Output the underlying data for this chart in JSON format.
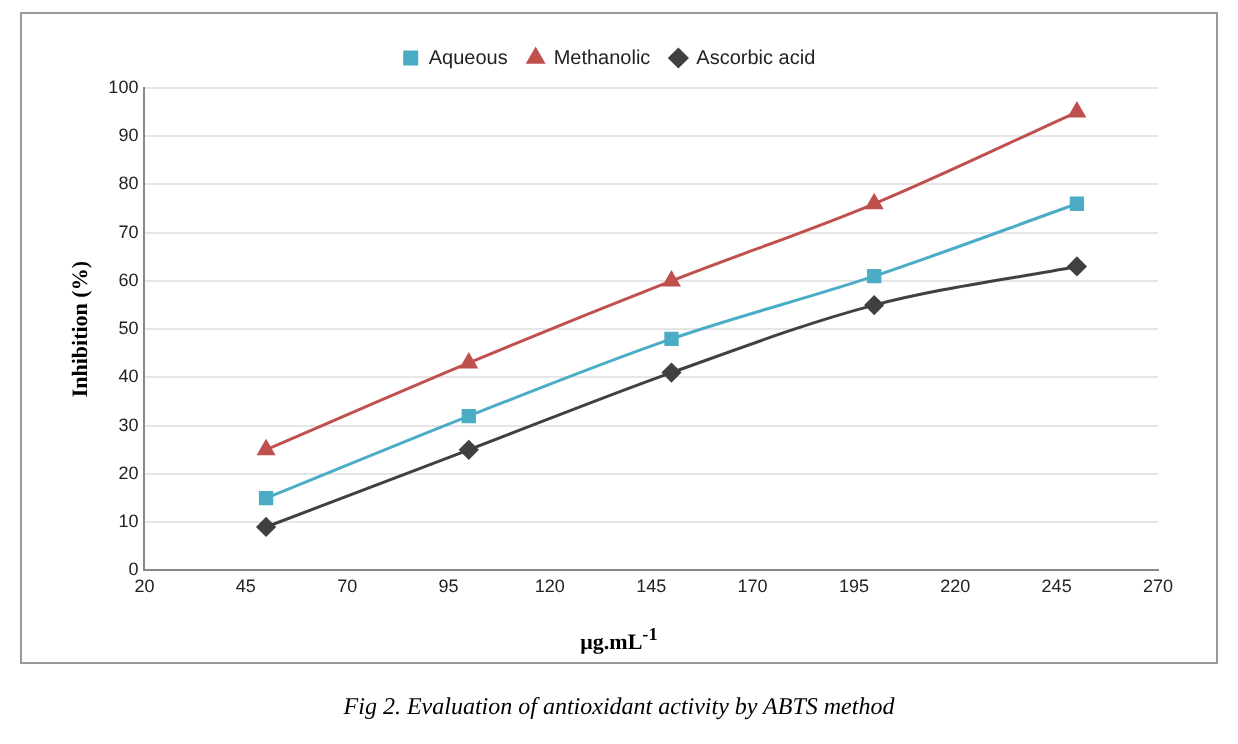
{
  "chart_data": {
    "type": "line",
    "xlabel": "μg.mL$^{-1}$",
    "ylabel": "Inhibition (%)",
    "x": [
      50,
      100,
      150,
      200,
      250
    ],
    "series": [
      {
        "name": "Aqueous",
        "color": "#4bacc6",
        "marker": "square",
        "values": [
          15,
          32,
          48,
          61,
          76
        ]
      },
      {
        "name": "Methanolic",
        "color": "#c0504d",
        "marker": "triangle",
        "values": [
          25,
          43,
          60,
          76,
          95
        ]
      },
      {
        "name": "Ascorbic acid",
        "color": "#404040",
        "marker": "diamond",
        "values": [
          9,
          25,
          41,
          55,
          63
        ]
      }
    ],
    "xlim": [
      20,
      270
    ],
    "xticks": [
      20,
      45,
      70,
      95,
      120,
      145,
      170,
      195,
      220,
      245,
      270
    ],
    "ylim": [
      0,
      100
    ],
    "yticks": [
      0,
      10,
      20,
      30,
      40,
      50,
      60,
      70,
      80,
      90,
      100
    ],
    "grid": "y",
    "legend": "top",
    "annotations": [
      "Fig 2. Evaluation of antioxidant activity by ABTS method"
    ]
  }
}
